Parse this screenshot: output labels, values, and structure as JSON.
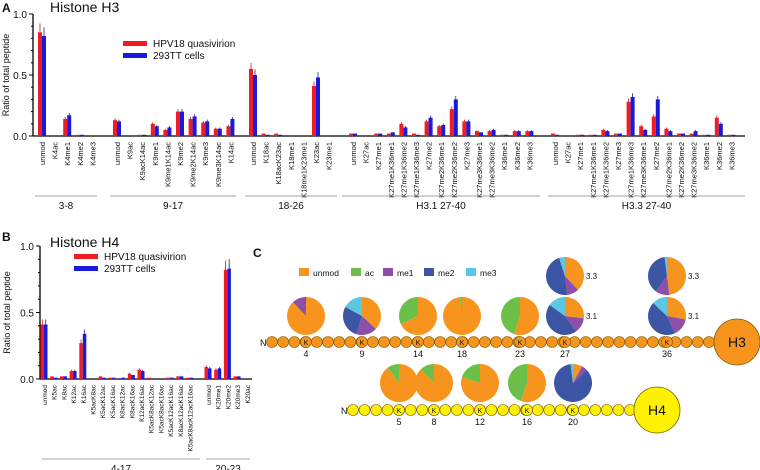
{
  "panels": {
    "a": "A",
    "b": "B",
    "c": "C"
  },
  "legend": {
    "red": "HPV18 quasivirion",
    "blue": "293TT cells"
  },
  "colors": {
    "red": "#ee1c24",
    "blue": "#1a1adc",
    "unmod": "#f7941d",
    "ac": "#6cc04a",
    "me1": "#8e4fa8",
    "me2": "#3c55a5",
    "me3": "#5ac8e0",
    "h3": "#f7941d",
    "h4": "#fff200"
  },
  "chart_data": [
    {
      "type": "bar",
      "title": "Histone H3",
      "ylabel": "Ratio of total peptide",
      "ylim": [
        0,
        1.0
      ],
      "yticks": [
        "0.0",
        "0.5",
        "1.0"
      ],
      "series": [
        {
          "name": "HPV18 quasivirion"
        },
        {
          "name": "293TT cells"
        }
      ],
      "groups": [
        {
          "label": "3-8",
          "categories": [
            "unmod",
            "K4ac",
            "K4me1",
            "K4me2",
            "K4me3"
          ],
          "red": [
            0.85,
            0,
            0.14,
            0.01,
            0
          ],
          "blue": [
            0.82,
            0,
            0.17,
            0.01,
            0
          ]
        },
        {
          "label": "9-17",
          "categories": [
            "unmod",
            "K9ac",
            "K9acK14ac",
            "K9me1",
            "K9me1K14ac",
            "K9me2",
            "K9me2K14ac",
            "K9me3",
            "K9me3K14ac",
            "K14ac"
          ],
          "red": [
            0.13,
            0,
            0.01,
            0.1,
            0.05,
            0.2,
            0.14,
            0.11,
            0.06,
            0.08
          ],
          "blue": [
            0.12,
            0,
            0.01,
            0.08,
            0.07,
            0.2,
            0.16,
            0.12,
            0.06,
            0.14
          ]
        },
        {
          "label": "18-26",
          "categories": [
            "unmod",
            "K18ac",
            "K18acK23ac",
            "K18me1",
            "K18me1K23me1",
            "K23ac",
            "K23me1"
          ],
          "red": [
            0.55,
            0.02,
            0.02,
            0,
            0,
            0.41,
            0
          ],
          "blue": [
            0.5,
            0.01,
            0.01,
            0,
            0,
            0.48,
            0
          ]
        },
        {
          "label": "H3.1 27-40",
          "categories": [
            "unmod",
            "K27ac",
            "K27me1",
            "K27me1K36me1",
            "K27me1K36me2",
            "K27me1K36me3",
            "K27me2",
            "K27me2K36me1",
            "K27me2K36me2",
            "K27me3",
            "K27me3K36me1",
            "K27me3K36me2",
            "K36me1",
            "K36me2",
            "K36me3"
          ],
          "red": [
            0.02,
            0,
            0.02,
            0.02,
            0.1,
            0.02,
            0.12,
            0.08,
            0.22,
            0.12,
            0.04,
            0.04,
            0.01,
            0.04,
            0.04
          ],
          "blue": [
            0.02,
            0,
            0.02,
            0.03,
            0.07,
            0.01,
            0.15,
            0.09,
            0.3,
            0.12,
            0.03,
            0.05,
            0.01,
            0.04,
            0.04
          ]
        },
        {
          "label": "H3.3 27-40",
          "categories": [
            "unmod",
            "K27ac",
            "K27me1",
            "K27me1K36me1",
            "K27me1K36me2",
            "K27me3",
            "K27me1K36me3",
            "K27me3K36me1",
            "K27me2",
            "K27me2K36me1",
            "K27me2K36me2",
            "K27me3K36me2",
            "K36me1",
            "K36me2",
            "K36me3"
          ],
          "red": [
            0.02,
            0,
            0.01,
            0.01,
            0.05,
            0.02,
            0.28,
            0.08,
            0.16,
            0.06,
            0.02,
            0.02,
            0.01,
            0.15,
            0.01
          ],
          "blue": [
            0.01,
            0,
            0.01,
            0.01,
            0.04,
            0.02,
            0.32,
            0.05,
            0.3,
            0.04,
            0.02,
            0.04,
            0.01,
            0.1,
            0.01
          ]
        }
      ]
    },
    {
      "type": "bar",
      "title": "Histone H4",
      "ylabel": "Ratio of total peptide",
      "ylim": [
        0,
        1.0
      ],
      "yticks": [
        "0.0",
        "0.5",
        "1.0"
      ],
      "series": [
        {
          "name": "HPV18 quasivirion"
        },
        {
          "name": "293TT cells"
        }
      ],
      "groups": [
        {
          "label": "4-17",
          "categories": [
            "unmod",
            "K5ac",
            "K8ac",
            "K12ac",
            "K16ac",
            "K5acK8ac",
            "K5acK12ac",
            "K5acK16ac",
            "K8acK12ac",
            "K8acK16ac",
            "K12acK16ac",
            "K5acK8acK12ac",
            "K5acK8acK16ac",
            "K5acK12acK16ac",
            "K8acK12acK16ac",
            "K5acK8acK12acK16ac"
          ],
          "red": [
            0.41,
            0.02,
            0.02,
            0.06,
            0.27,
            0,
            0.02,
            0.01,
            0,
            0.04,
            0.07,
            0.01,
            0,
            0.01,
            0.02,
            0.01
          ],
          "blue": [
            0.41,
            0.01,
            0.02,
            0.06,
            0.34,
            0,
            0.01,
            0.01,
            0.01,
            0.03,
            0.06,
            0,
            0,
            0.01,
            0.02,
            0.01
          ]
        },
        {
          "label": "20-23",
          "categories": [
            "unmod",
            "K20me1",
            "K20me2",
            "K20me3",
            "K20ac"
          ],
          "red": [
            0.09,
            0.07,
            0.82,
            0.02,
            0
          ],
          "blue": [
            0.08,
            0.08,
            0.83,
            0.02,
            0
          ]
        }
      ]
    },
    {
      "type": "pie",
      "legend": [
        "unmod",
        "ac",
        "me1",
        "me2",
        "me3"
      ],
      "h3": {
        "label": "H3",
        "n": "N",
        "residue": "K",
        "sites": [
          {
            "pos": "4",
            "slices": {
              "unmod": 0.88,
              "me1": 0.11,
              "me2": 0.01
            }
          },
          {
            "pos": "9",
            "slices": {
              "unmod": 0.37,
              "me1": 0.18,
              "me2": 0.28,
              "me3": 0.17
            }
          },
          {
            "pos": "14",
            "slices": {
              "unmod": 0.68,
              "ac": 0.32
            }
          },
          {
            "pos": "18",
            "slices": {
              "unmod": 0.98,
              "ac": 0.02
            }
          },
          {
            "pos": "23",
            "slices": {
              "unmod": 0.55,
              "ac": 0.45
            }
          },
          {
            "pos": "27",
            "variant": "3.1",
            "slices": {
              "unmod": 0.27,
              "me1": 0.13,
              "me2": 0.45,
              "me3": 0.15
            },
            "variant2": "3.3",
            "slices2": {
              "unmod": 0.38,
              "me1": 0.1,
              "me2": 0.47,
              "me3": 0.05
            }
          },
          {
            "pos": "36",
            "variant": "3.1",
            "slices": {
              "unmod": 0.28,
              "me1": 0.15,
              "me2": 0.44,
              "me3": 0.13
            },
            "variant2": "3.3",
            "slices2": {
              "unmod": 0.48,
              "me1": 0.12,
              "me2": 0.38,
              "me3": 0.02
            }
          }
        ]
      },
      "h4": {
        "label": "H4",
        "n": "N",
        "residue": "K",
        "sites": [
          {
            "pos": "5",
            "slices": {
              "unmod": 0.9,
              "ac": 0.1
            }
          },
          {
            "pos": "8",
            "slices": {
              "unmod": 0.88,
              "ac": 0.12
            }
          },
          {
            "pos": "12",
            "slices": {
              "unmod": 0.8,
              "ac": 0.2
            }
          },
          {
            "pos": "16",
            "slices": {
              "unmod": 0.55,
              "ac": 0.45
            }
          },
          {
            "pos": "20",
            "slices": {
              "unmod": 0.08,
              "me1": 0.05,
              "me2": 0.85,
              "me3": 0.02
            }
          }
        ]
      }
    }
  ]
}
